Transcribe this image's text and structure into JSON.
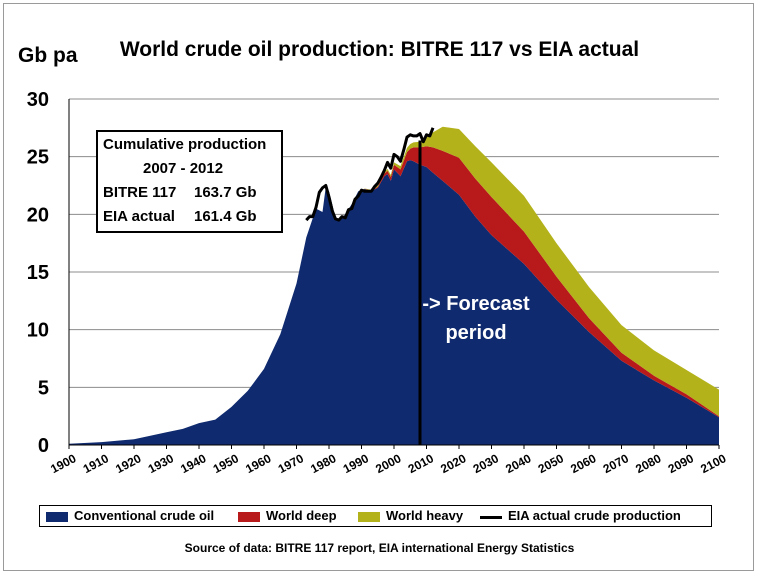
{
  "chart_data": {
    "type": "area",
    "title": "World crude oil production: BITRE 117 vs EIA actual",
    "ylabel": "Gb pa",
    "xlabel": "",
    "xlim": [
      1900,
      2100
    ],
    "ylim": [
      0,
      30
    ],
    "x_ticks": [
      1900,
      1910,
      1920,
      1930,
      1940,
      1950,
      1960,
      1970,
      1980,
      1990,
      2000,
      2010,
      2020,
      2030,
      2040,
      2050,
      2060,
      2070,
      2080,
      2090,
      2100
    ],
    "y_ticks": [
      0,
      5,
      10,
      15,
      20,
      25,
      30
    ],
    "grid": "horizontal",
    "stacked": true,
    "legend_position": "bottom",
    "series": [
      {
        "name": "Conventional crude oil",
        "color": "#0f2a6e",
        "points": [
          [
            1900,
            0.1
          ],
          [
            1910,
            0.25
          ],
          [
            1920,
            0.5
          ],
          [
            1925,
            0.8
          ],
          [
            1930,
            1.1
          ],
          [
            1935,
            1.4
          ],
          [
            1940,
            1.9
          ],
          [
            1945,
            2.2
          ],
          [
            1950,
            3.3
          ],
          [
            1955,
            4.7
          ],
          [
            1960,
            6.6
          ],
          [
            1965,
            9.6
          ],
          [
            1970,
            14.0
          ],
          [
            1973,
            18.0
          ],
          [
            1976,
            20.5
          ],
          [
            1978,
            20.2
          ],
          [
            1979,
            22.4
          ],
          [
            1980,
            22.0
          ],
          [
            1982,
            19.7
          ],
          [
            1983,
            19.4
          ],
          [
            1985,
            20.0
          ],
          [
            1987,
            20.9
          ],
          [
            1989,
            22.0
          ],
          [
            1991,
            22.2
          ],
          [
            1993,
            22.0
          ],
          [
            1995,
            22.3
          ],
          [
            1997,
            23.3
          ],
          [
            1998,
            23.5
          ],
          [
            1999,
            22.9
          ],
          [
            2000,
            23.9
          ],
          [
            2002,
            23.3
          ],
          [
            2004,
            24.6
          ],
          [
            2005,
            24.7
          ],
          [
            2006,
            24.6
          ],
          [
            2008,
            24.3
          ],
          [
            2010,
            24.1
          ],
          [
            2012,
            23.6
          ],
          [
            2015,
            22.9
          ],
          [
            2020,
            21.7
          ],
          [
            2025,
            19.8
          ],
          [
            2030,
            18.2
          ],
          [
            2040,
            15.7
          ],
          [
            2050,
            12.6
          ],
          [
            2060,
            9.8
          ],
          [
            2070,
            7.3
          ],
          [
            2080,
            5.6
          ],
          [
            2090,
            4.1
          ],
          [
            2100,
            2.4
          ]
        ]
      },
      {
        "name": "World deep",
        "color": "#b8191b",
        "points": [
          [
            1900,
            0
          ],
          [
            1990,
            0
          ],
          [
            1995,
            0.1
          ],
          [
            2000,
            0.4
          ],
          [
            2004,
            0.8
          ],
          [
            2006,
            1.2
          ],
          [
            2008,
            1.5
          ],
          [
            2010,
            1.8
          ],
          [
            2012,
            2.2
          ],
          [
            2015,
            2.6
          ],
          [
            2020,
            3.2
          ],
          [
            2025,
            3.3
          ],
          [
            2030,
            3.3
          ],
          [
            2040,
            2.8
          ],
          [
            2050,
            2.0
          ],
          [
            2060,
            1.2
          ],
          [
            2070,
            0.7
          ],
          [
            2080,
            0.4
          ],
          [
            2090,
            0.3
          ],
          [
            2100,
            0.1
          ]
        ]
      },
      {
        "name": "World heavy",
        "color": "#b3b21b",
        "points": [
          [
            1900,
            0
          ],
          [
            1990,
            0
          ],
          [
            1995,
            0.1
          ],
          [
            2000,
            0.2
          ],
          [
            2005,
            0.4
          ],
          [
            2008,
            0.5
          ],
          [
            2010,
            0.8
          ],
          [
            2012,
            1.3
          ],
          [
            2015,
            2.1
          ],
          [
            2020,
            2.5
          ],
          [
            2025,
            2.8
          ],
          [
            2030,
            3.0
          ],
          [
            2040,
            3.1
          ],
          [
            2050,
            2.9
          ],
          [
            2060,
            2.7
          ],
          [
            2070,
            2.4
          ],
          [
            2080,
            2.2
          ],
          [
            2090,
            2.1
          ],
          [
            2100,
            2.3
          ]
        ]
      },
      {
        "name": "EIA actual crude production",
        "type": "line",
        "color": "#000000",
        "points": [
          [
            1973,
            19.5
          ],
          [
            1974,
            19.8
          ],
          [
            1975,
            19.8
          ],
          [
            1976,
            20.6
          ],
          [
            1977,
            21.9
          ],
          [
            1978,
            22.3
          ],
          [
            1979,
            22.5
          ],
          [
            1980,
            21.5
          ],
          [
            1981,
            20.3
          ],
          [
            1982,
            19.6
          ],
          [
            1983,
            19.5
          ],
          [
            1984,
            19.8
          ],
          [
            1985,
            19.7
          ],
          [
            1986,
            20.4
          ],
          [
            1987,
            20.5
          ],
          [
            1988,
            21.3
          ],
          [
            1989,
            21.6
          ],
          [
            1990,
            22.1
          ],
          [
            1991,
            22.0
          ],
          [
            1992,
            22.0
          ],
          [
            1993,
            22.0
          ],
          [
            1994,
            22.4
          ],
          [
            1995,
            22.7
          ],
          [
            1996,
            23.2
          ],
          [
            1997,
            23.8
          ],
          [
            1998,
            24.5
          ],
          [
            1999,
            24.0
          ],
          [
            2000,
            25.2
          ],
          [
            2001,
            25.0
          ],
          [
            2002,
            24.6
          ],
          [
            2003,
            25.6
          ],
          [
            2004,
            26.7
          ],
          [
            2005,
            26.9
          ],
          [
            2006,
            26.8
          ],
          [
            2007,
            26.8
          ],
          [
            2008,
            27.0
          ],
          [
            2009,
            26.3
          ],
          [
            2010,
            26.9
          ],
          [
            2011,
            26.8
          ],
          [
            2012,
            27.5
          ]
        ]
      }
    ],
    "annotations": [
      {
        "text": "-> Forecast period",
        "x": 2008
      }
    ]
  },
  "cumulative_box": {
    "title": "Cumulative production",
    "period": "2007 -  2012",
    "rows": [
      {
        "label": "BITRE 117",
        "value": "163.7 Gb"
      },
      {
        "label": "EIA actual",
        "value": "161.4 Gb"
      }
    ]
  },
  "forecast_label": [
    "-> Forecast",
    "period"
  ],
  "source_note": "Source of data: BITRE 117 report, EIA international Energy Statistics"
}
